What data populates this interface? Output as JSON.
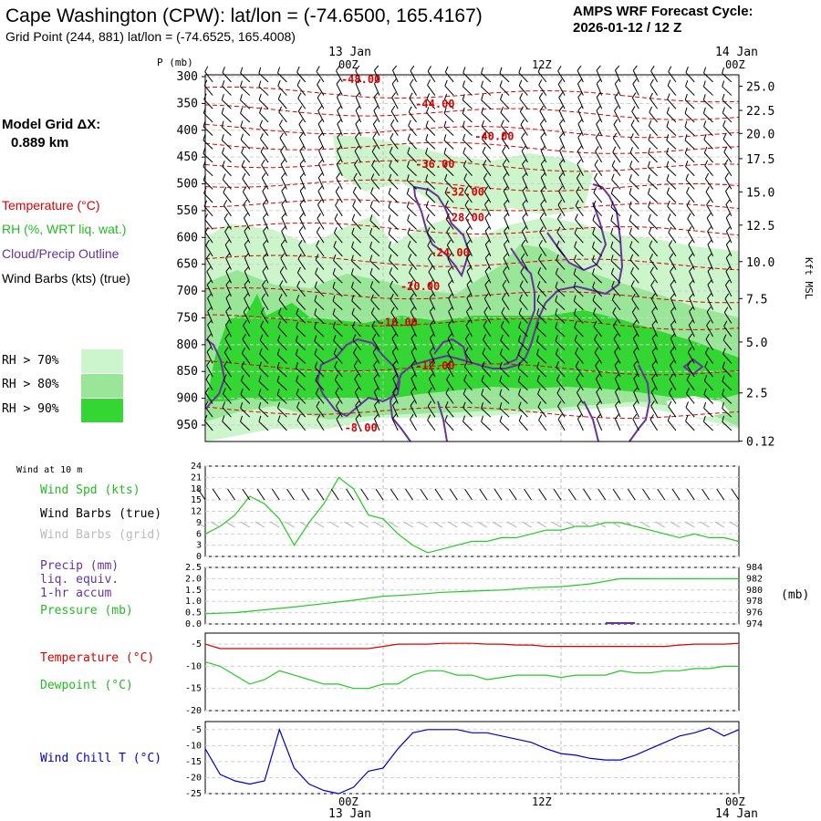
{
  "header": {
    "title": "Cape Washington (CPW):  lat/lon = (-74.6500, 165.4167)",
    "grid_point": "Grid Point (244, 881) lat/lon = (-74.6525, 165.4008)",
    "forecast_cycle_label": "AMPS WRF Forecast Cycle:",
    "forecast_cycle_value": "2026-01-12 / 12  Z"
  },
  "time_axis": {
    "top_dates": [
      "13 Jan",
      "14 Jan"
    ],
    "top_times": [
      "00Z",
      "12Z",
      "00Z"
    ],
    "bottom_times": [
      "00Z",
      "12Z",
      "00Z"
    ],
    "bottom_dates": [
      "13 Jan",
      "14 Jan"
    ]
  },
  "left_panel": {
    "model_grid_label": "Model Grid ΔX:",
    "model_grid_value": "0.889 km",
    "legend": {
      "temperature": "Temperature (°C)",
      "rh": "RH (%, WRT liq. wat.)",
      "cloud": "Cloud/Precip Outline",
      "wind_barbs": "Wind Barbs (kts) (true)"
    },
    "rh_key": [
      {
        "label": "RH > 70%",
        "color": "#ccf5cc"
      },
      {
        "label": "RH > 80%",
        "color": "#99e699"
      },
      {
        "label": "RH > 90%",
        "color": "#33d633"
      }
    ]
  },
  "colors": {
    "temperature": "#dd0000",
    "rh_text": "#22bb22",
    "cloud": "#663399",
    "wind_chill": "#0000cc",
    "pressure_line": "#22cc22",
    "grid_barbs": "#aaaaaa"
  },
  "chart_data": [
    {
      "type": "contour",
      "name": "vertical-cross-section",
      "ylabel": "P (mb)",
      "yticks_pressure": [
        300,
        350,
        400,
        450,
        500,
        550,
        600,
        650,
        700,
        750,
        800,
        850,
        900,
        950
      ],
      "right_label": "Kft MSL",
      "right_ticks": [
        "25.0",
        "22.5",
        "20.0",
        "17.5",
        "15.0",
        "12.5",
        "10.0",
        "7.5",
        "5.0",
        "2.5",
        "0.12"
      ],
      "right_tick_pressures": [
        318,
        363,
        406,
        453,
        515,
        577,
        645,
        714,
        795,
        890,
        980
      ],
      "x_hours_range": [
        0,
        36
      ],
      "temperature_contour_labels": [
        {
          "label": "-48.00",
          "hour": 10.5,
          "p": 312
        },
        {
          "label": "-44.00",
          "hour": 15.5,
          "p": 358
        },
        {
          "label": "-40.00",
          "hour": 19.5,
          "p": 418
        },
        {
          "label": "-36.00",
          "hour": 15.5,
          "p": 470
        },
        {
          "label": "-32.00",
          "hour": 17.5,
          "p": 522
        },
        {
          "label": "-28.00",
          "hour": 17.5,
          "p": 570
        },
        {
          "label": "-24.00",
          "hour": 16.5,
          "p": 635
        },
        {
          "label": "-20.00",
          "hour": 14.5,
          "p": 698
        },
        {
          "label": "-16.00",
          "hour": 13.0,
          "p": 765
        },
        {
          "label": "-12.00",
          "hour": 15.5,
          "p": 846
        },
        {
          "label": "-8.00",
          "hour": 10.5,
          "p": 962
        }
      ]
    },
    {
      "type": "line",
      "name": "wind-speed",
      "title": "Wind at 10 m",
      "legend": [
        "Wind Spd (kts)",
        "Wind Barbs (true)",
        "Wind Barbs (grid)"
      ],
      "ylim": [
        0,
        24
      ],
      "yticks": [
        0,
        3,
        6,
        9,
        12,
        15,
        18,
        21,
        24
      ],
      "x_hours": [
        0,
        1,
        2,
        3,
        4,
        5,
        6,
        7,
        8,
        9,
        10,
        11,
        12,
        13,
        14,
        15,
        16,
        17,
        18,
        19,
        20,
        21,
        22,
        23,
        24,
        25,
        26,
        27,
        28,
        29,
        30,
        31,
        32,
        33,
        34,
        35,
        36
      ],
      "values": [
        6,
        8,
        11,
        16,
        14,
        10,
        3,
        9,
        14,
        21,
        18,
        11,
        10,
        6,
        3,
        1,
        2,
        3,
        4,
        4,
        5,
        5,
        6,
        7,
        7,
        8,
        8,
        9,
        9,
        8,
        7,
        6,
        5,
        6,
        5,
        5,
        4
      ]
    },
    {
      "type": "line",
      "name": "precip-pressure",
      "legend": [
        "Precip (mm)",
        "liq. equiv.",
        "1-hr accum",
        "Pressure (mb)"
      ],
      "ylim_precip": [
        0,
        2.5
      ],
      "yticks_precip": [
        "0.0",
        "0.5",
        "1.0",
        "1.5",
        "2.0",
        "2.5"
      ],
      "ylim_pressure": [
        974,
        984
      ],
      "yticks_pressure": [
        "974",
        "976",
        "978",
        "980",
        "982",
        "984"
      ],
      "right_unit": "(mb)",
      "x_hours": [
        0,
        2,
        4,
        6,
        8,
        10,
        12,
        14,
        16,
        18,
        20,
        22,
        24,
        26,
        28,
        30,
        32,
        34,
        36
      ],
      "pressure": [
        975.8,
        976.0,
        976.5,
        977.0,
        977.6,
        978.2,
        978.9,
        979.2,
        979.6,
        979.8,
        980.0,
        980.4,
        980.6,
        981.1,
        982.0,
        982.0,
        982.0,
        982.0,
        982.0
      ],
      "precip_hours": [
        27,
        28
      ],
      "precip_values": [
        0.02,
        0.02
      ]
    },
    {
      "type": "line",
      "name": "temperature-dewpoint",
      "legend": [
        "Temperature (°C)",
        "Dewpoint (°C)"
      ],
      "ylim": [
        -20,
        -2.5
      ],
      "yticks": [
        -20,
        -15,
        -10,
        -5
      ],
      "x_hours": [
        0,
        1,
        2,
        3,
        4,
        5,
        6,
        7,
        8,
        9,
        10,
        11,
        12,
        13,
        14,
        15,
        16,
        17,
        18,
        19,
        20,
        21,
        22,
        23,
        24,
        25,
        26,
        27,
        28,
        29,
        30,
        31,
        32,
        33,
        34,
        35,
        36
      ],
      "temperature": [
        -5,
        -6,
        -6,
        -6,
        -6,
        -6,
        -6,
        -6,
        -6,
        -6,
        -6,
        -6,
        -5.5,
        -5,
        -5,
        -5,
        -4.8,
        -4.8,
        -4.8,
        -5,
        -5,
        -5.2,
        -5.2,
        -5.5,
        -5.5,
        -5.5,
        -5.5,
        -5.5,
        -5.5,
        -5.5,
        -5.5,
        -5.5,
        -5.2,
        -5,
        -5,
        -5,
        -4.8
      ],
      "dewpoint": [
        -9,
        -10,
        -12,
        -14,
        -13,
        -11,
        -12,
        -13,
        -14,
        -14,
        -15,
        -15,
        -14,
        -14,
        -12,
        -11,
        -11,
        -12,
        -12,
        -13,
        -12.5,
        -12,
        -12,
        -12,
        -12.5,
        -12,
        -12,
        -12,
        -11,
        -11.5,
        -11.5,
        -11,
        -11,
        -10.5,
        -10.5,
        -10,
        -10
      ]
    },
    {
      "type": "line",
      "name": "wind-chill",
      "legend": [
        "Wind Chill T (°C)"
      ],
      "ylim": [
        -25,
        -2.5
      ],
      "yticks": [
        -25,
        -20,
        -15,
        -10,
        -5
      ],
      "x_hours": [
        0,
        1,
        2,
        3,
        4,
        5,
        6,
        7,
        8,
        9,
        10,
        11,
        12,
        13,
        14,
        15,
        16,
        17,
        18,
        19,
        20,
        21,
        22,
        23,
        24,
        25,
        26,
        27,
        28,
        29,
        30,
        31,
        32,
        33,
        34,
        35,
        36
      ],
      "values": [
        -11,
        -19,
        -21,
        -22,
        -21,
        -5,
        -17,
        -22,
        -24,
        -25,
        -23,
        -18,
        -17,
        -11,
        -6,
        -5,
        -5,
        -5,
        -6,
        -6,
        -7,
        -8,
        -9,
        -11,
        -12.5,
        -13,
        -14,
        -14.5,
        -14.5,
        -13,
        -11,
        -9,
        -7,
        -6,
        -4.5,
        -7,
        -5
      ]
    }
  ]
}
